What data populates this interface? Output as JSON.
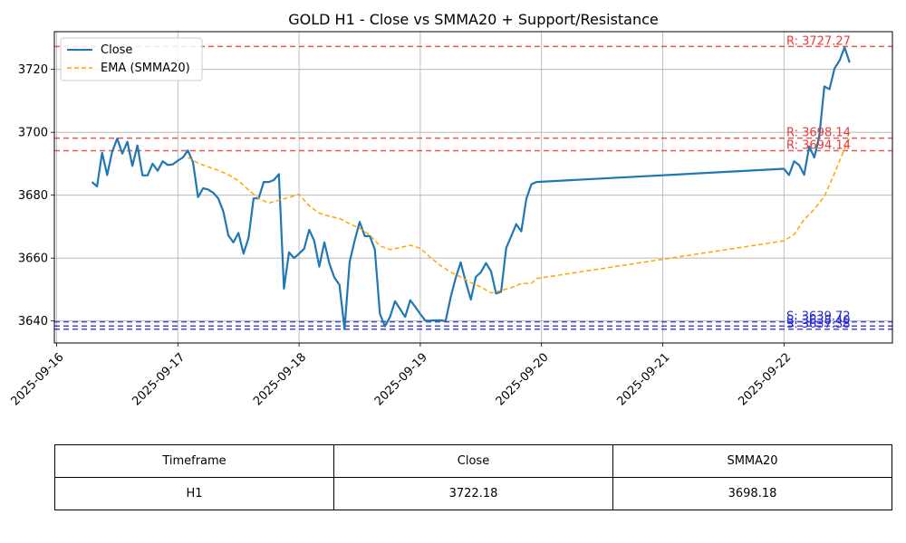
{
  "chart_data": {
    "type": "line",
    "title": "GOLD H1 - Close vs SMMA20 + Support/Resistance",
    "xlabel": "",
    "ylabel": "",
    "ylim": [
      3633,
      3732
    ],
    "grid": true,
    "legend_placement": "top-left",
    "x_tick_labels": [
      "2025-09-16",
      "2025-09-17",
      "2025-09-18",
      "2025-09-19",
      "2025-09-20",
      "2025-09-21",
      "2025-09-22"
    ],
    "y_ticks": [
      3640,
      3660,
      3680,
      3700,
      3720
    ],
    "series": [
      {
        "name": "Close",
        "color": "#1f77b4",
        "style": "solid",
        "x": [
          "2025-09-16 07:00",
          "2025-09-16 08:00",
          "2025-09-16 09:00",
          "2025-09-16 10:00",
          "2025-09-16 11:00",
          "2025-09-16 12:00",
          "2025-09-16 13:00",
          "2025-09-16 14:00",
          "2025-09-16 15:00",
          "2025-09-16 16:00",
          "2025-09-16 17:00",
          "2025-09-16 18:00",
          "2025-09-16 19:00",
          "2025-09-16 20:00",
          "2025-09-16 21:00",
          "2025-09-16 22:00",
          "2025-09-16 23:00",
          "2025-09-17 00:00",
          "2025-09-17 01:00",
          "2025-09-17 02:00",
          "2025-09-17 03:00",
          "2025-09-17 04:00",
          "2025-09-17 05:00",
          "2025-09-17 06:00",
          "2025-09-17 07:00",
          "2025-09-17 08:00",
          "2025-09-17 09:00",
          "2025-09-17 10:00",
          "2025-09-17 11:00",
          "2025-09-17 12:00",
          "2025-09-17 13:00",
          "2025-09-17 14:00",
          "2025-09-17 15:00",
          "2025-09-17 16:00",
          "2025-09-17 17:00",
          "2025-09-17 18:00",
          "2025-09-17 19:00",
          "2025-09-17 20:00",
          "2025-09-17 21:00",
          "2025-09-17 22:00",
          "2025-09-17 23:00",
          "2025-09-18 00:00",
          "2025-09-18 01:00",
          "2025-09-18 02:00",
          "2025-09-18 03:00",
          "2025-09-18 04:00",
          "2025-09-18 05:00",
          "2025-09-18 06:00",
          "2025-09-18 07:00",
          "2025-09-18 08:00",
          "2025-09-18 09:00",
          "2025-09-18 10:00",
          "2025-09-18 11:00",
          "2025-09-18 12:00",
          "2025-09-18 13:00",
          "2025-09-18 14:00",
          "2025-09-18 15:00",
          "2025-09-18 16:00",
          "2025-09-18 17:00",
          "2025-09-18 18:00",
          "2025-09-18 19:00",
          "2025-09-18 20:00",
          "2025-09-18 21:00",
          "2025-09-18 22:00",
          "2025-09-18 23:00",
          "2025-09-19 00:00",
          "2025-09-19 01:00",
          "2025-09-19 02:00",
          "2025-09-19 03:00",
          "2025-09-19 04:00",
          "2025-09-19 05:00",
          "2025-09-19 06:00",
          "2025-09-19 07:00",
          "2025-09-19 08:00",
          "2025-09-19 09:00",
          "2025-09-19 10:00",
          "2025-09-19 11:00",
          "2025-09-19 12:00",
          "2025-09-19 13:00",
          "2025-09-19 14:00",
          "2025-09-19 15:00",
          "2025-09-19 16:00",
          "2025-09-19 17:00",
          "2025-09-19 18:00",
          "2025-09-19 19:00",
          "2025-09-19 20:00",
          "2025-09-19 21:00",
          "2025-09-19 22:00",
          "2025-09-19 23:00",
          "2025-09-22 00:00",
          "2025-09-22 01:00",
          "2025-09-22 02:00",
          "2025-09-22 03:00",
          "2025-09-22 04:00",
          "2025-09-22 05:00",
          "2025-09-22 06:00",
          "2025-09-22 07:00",
          "2025-09-22 08:00",
          "2025-09-22 09:00",
          "2025-09-22 10:00",
          "2025-09-22 11:00",
          "2025-09-22 12:00",
          "2025-09-22 13:00"
        ],
        "y": [
          3684.2,
          3682.8,
          3693.5,
          3686.4,
          3693.8,
          3698.0,
          3693.2,
          3697.0,
          3689.3,
          3695.8,
          3686.3,
          3686.3,
          3690.0,
          3687.8,
          3690.8,
          3689.6,
          3689.8,
          3691.0,
          3692.0,
          3694.2,
          3690.5,
          3679.4,
          3682.2,
          3681.8,
          3680.8,
          3679.0,
          3674.8,
          3667.2,
          3665.0,
          3668.0,
          3661.4,
          3666.5,
          3679.0,
          3679.0,
          3684.2,
          3684.2,
          3684.8,
          3686.7,
          3650.3,
          3661.8,
          3660.0,
          3661.4,
          3663.0,
          3669.0,
          3665.5,
          3657.3,
          3665.0,
          3658.2,
          3653.8,
          3651.5,
          3637.4,
          3658.8,
          3665.5,
          3671.5,
          3667.0,
          3667.0,
          3662.8,
          3642.3,
          3638.3,
          3641.3,
          3646.3,
          3643.8,
          3641.3,
          3646.6,
          3644.5,
          3642.2,
          3640.1,
          3640.1,
          3640.2,
          3640.2,
          3640.0,
          3647.5,
          3653.6,
          3658.6,
          3652.4,
          3646.8,
          3654.0,
          3655.5,
          3658.4,
          3655.8,
          3648.7,
          3649.3,
          3663.2,
          3667.0,
          3670.8,
          3668.5,
          3678.9,
          3683.5,
          3684.2,
          3688.4,
          3686.4,
          3690.8,
          3689.6,
          3686.5,
          3695.5,
          3692.0,
          3698.8,
          3714.6,
          3713.7,
          3720.3,
          3722.8,
          3727.0,
          3722.2
        ]
      },
      {
        "name": "EMA (SMMA20)",
        "color": "#ffa500",
        "style": "dashed",
        "x": [
          "2025-09-17 02:00",
          "2025-09-17 04:00",
          "2025-09-17 06:00",
          "2025-09-17 08:00",
          "2025-09-17 10:00",
          "2025-09-17 12:00",
          "2025-09-17 14:00",
          "2025-09-17 16:00",
          "2025-09-17 18:00",
          "2025-09-17 20:00",
          "2025-09-17 22:00",
          "2025-09-18 00:00",
          "2025-09-18 02:00",
          "2025-09-18 04:00",
          "2025-09-18 06:00",
          "2025-09-18 08:00",
          "2025-09-18 10:00",
          "2025-09-18 12:00",
          "2025-09-18 14:00",
          "2025-09-18 16:00",
          "2025-09-18 18:00",
          "2025-09-18 20:00",
          "2025-09-18 22:00",
          "2025-09-19 00:00",
          "2025-09-19 02:00",
          "2025-09-19 04:00",
          "2025-09-19 06:00",
          "2025-09-19 08:00",
          "2025-09-19 10:00",
          "2025-09-19 12:00",
          "2025-09-19 14:00",
          "2025-09-19 16:00",
          "2025-09-19 18:00",
          "2025-09-19 20:00",
          "2025-09-19 22:00",
          "2025-09-19 23:00",
          "2025-09-22 00:00",
          "2025-09-22 02:00",
          "2025-09-22 04:00",
          "2025-09-22 06:00",
          "2025-09-22 08:00",
          "2025-09-22 10:00",
          "2025-09-22 12:00",
          "2025-09-22 13:00"
        ],
        "y": [
          3692.0,
          3690.2,
          3689.0,
          3687.9,
          3686.5,
          3684.6,
          3681.6,
          3679.0,
          3677.5,
          3678.4,
          3679.3,
          3680.3,
          3676.6,
          3674.3,
          3673.3,
          3672.6,
          3670.9,
          3669.5,
          3667.3,
          3663.9,
          3662.7,
          3663.3,
          3664.1,
          3663.1,
          3660.2,
          3657.6,
          3655.5,
          3654.0,
          3652.2,
          3650.8,
          3648.9,
          3649.7,
          3650.6,
          3651.9,
          3652.0,
          3653.5,
          3665.5,
          3667.5,
          3672.3,
          3675.5,
          3679.6,
          3687.0,
          3694.8,
          3698.18
        ]
      }
    ],
    "resistance_levels": [
      {
        "label": "R: 3727.27",
        "value": 3727.27,
        "color": "#e83a3a"
      },
      {
        "label": "R: 3698.14",
        "value": 3698.14,
        "color": "#e83a3a"
      },
      {
        "label": "R: 3694.14",
        "value": 3694.14,
        "color": "#e83a3a"
      }
    ],
    "support_levels": [
      {
        "label": "S: 3639.72",
        "value": 3639.72,
        "color": "#2a2ad8"
      },
      {
        "label": "S: 3638.40",
        "value": 3638.4,
        "color": "#2a2ad8"
      },
      {
        "label": "S: 3637.38",
        "value": 3637.38,
        "color": "#2a2ad8"
      }
    ]
  },
  "table": {
    "headers": [
      "Timeframe",
      "Close",
      "SMMA20"
    ],
    "rows": [
      [
        "H1",
        "3722.18",
        "3698.18"
      ]
    ]
  }
}
